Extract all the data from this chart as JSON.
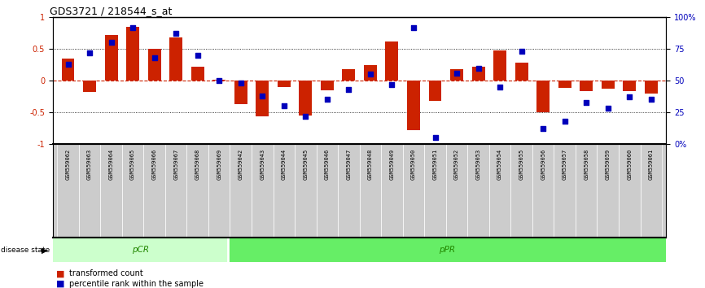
{
  "title": "GDS3721 / 218544_s_at",
  "samples": [
    "GSM559062",
    "GSM559063",
    "GSM559064",
    "GSM559065",
    "GSM559066",
    "GSM559067",
    "GSM559068",
    "GSM559069",
    "GSM559042",
    "GSM559043",
    "GSM559044",
    "GSM559045",
    "GSM559046",
    "GSM559047",
    "GSM559048",
    "GSM559049",
    "GSM559050",
    "GSM559051",
    "GSM559052",
    "GSM559053",
    "GSM559054",
    "GSM559055",
    "GSM559056",
    "GSM559057",
    "GSM559058",
    "GSM559059",
    "GSM559060",
    "GSM559061"
  ],
  "bar_values": [
    0.35,
    -0.18,
    0.72,
    0.85,
    0.5,
    0.68,
    0.22,
    0.02,
    -0.37,
    -0.56,
    -0.1,
    -0.55,
    -0.15,
    0.18,
    0.25,
    0.62,
    -0.78,
    -0.32,
    0.18,
    0.22,
    0.48,
    0.28,
    -0.5,
    -0.12,
    -0.17,
    -0.13,
    -0.16,
    -0.2
  ],
  "percentile_values": [
    0.63,
    0.72,
    0.8,
    0.92,
    0.68,
    0.87,
    0.7,
    0.5,
    0.48,
    0.38,
    0.3,
    0.22,
    0.35,
    0.43,
    0.55,
    0.47,
    0.92,
    0.05,
    0.56,
    0.6,
    0.45,
    0.73,
    0.12,
    0.18,
    0.33,
    0.28,
    0.37,
    0.35
  ],
  "pcr_count": 8,
  "ppr_count": 20,
  "bar_color": "#cc2200",
  "dot_color": "#0000bb",
  "pcr_color": "#ccffcc",
  "ppr_color": "#66ee66",
  "ylim": [
    -1,
    1
  ],
  "background_color": "#ffffff",
  "title_fontsize": 9,
  "tick_fontsize": 7,
  "label_fontsize": 7.5
}
